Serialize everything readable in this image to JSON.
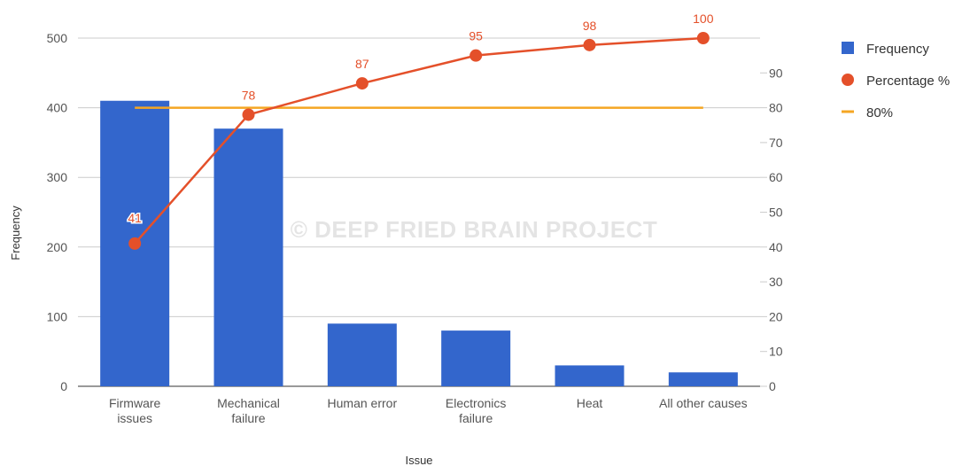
{
  "chart_data": {
    "type": "bar",
    "categories": [
      [
        "Firmware",
        "issues"
      ],
      [
        "Mechanical",
        "failure"
      ],
      [
        "Human error"
      ],
      [
        "Electronics",
        "failure"
      ],
      [
        "Heat"
      ],
      [
        "All other causes"
      ]
    ],
    "xlabel": "Issue",
    "ylabel": "Frequency",
    "ylim": [
      0,
      500
    ],
    "y_ticks": [
      0,
      100,
      200,
      300,
      400,
      500
    ],
    "y2lim": [
      0,
      100
    ],
    "y2_ticks": [
      0,
      10,
      20,
      30,
      40,
      50,
      60,
      70,
      80,
      90
    ],
    "grid": true,
    "legend_position": "right",
    "series": [
      {
        "name": "Frequency",
        "type": "bar",
        "axis": "left",
        "color": "#3366cc",
        "values": [
          410,
          370,
          90,
          80,
          30,
          20
        ]
      },
      {
        "name": "Percentage %",
        "type": "line",
        "axis": "right",
        "color": "#e4502a",
        "values": [
          41,
          78,
          87,
          95,
          98,
          100
        ],
        "data_labels": [
          "41",
          "78",
          "87",
          "95",
          "98",
          "100"
        ]
      },
      {
        "name": "80%",
        "type": "line",
        "axis": "right",
        "color": "#f5a623",
        "values": [
          80,
          80,
          80,
          80,
          80,
          80
        ]
      }
    ],
    "watermark": "© DEEP FRIED BRAIN PROJECT"
  }
}
